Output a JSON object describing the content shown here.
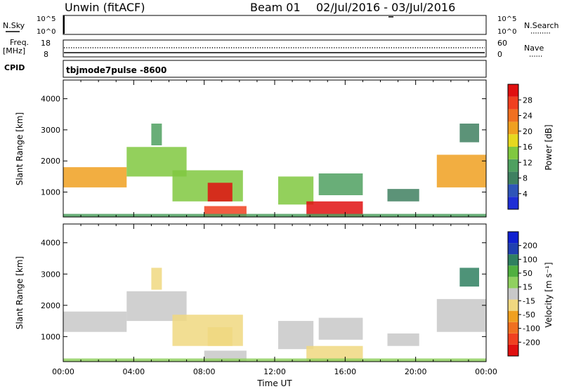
{
  "header": {
    "station": "Unwin (fitACF)",
    "beam": "Beam 01",
    "date_range": "02/Jul/2016 - 03/Jul/2016"
  },
  "top_panels": {
    "nsky": {
      "label": "N.Sky",
      "ticks": [
        "10^5",
        "10^0"
      ],
      "right_ticks": [
        "10^5",
        "10^0"
      ],
      "right_label": "N.Search"
    },
    "freq": {
      "label_line1": "Freq.",
      "label_line2": "[MHz]",
      "ticks": [
        "18",
        "8"
      ],
      "right_ticks": [
        "60",
        "0"
      ],
      "right_label": "Nave"
    },
    "cpid": {
      "label": "CPID",
      "mode_text": "tbjmode7pulse -8600"
    }
  },
  "colors": {
    "power_scale": [
      "#1f2fd6",
      "#2f55b8",
      "#3f8060",
      "#4fa060",
      "#80c840",
      "#e6d820",
      "#f0a020",
      "#f07020",
      "#f04020",
      "#e01010"
    ],
    "velocity_scale": [
      "#e01010",
      "#f04020",
      "#f07020",
      "#f0a020",
      "#f0d880",
      "#c8c8c8",
      "#90d060",
      "#50b040",
      "#2f8060",
      "#2040b0",
      "#1020d0"
    ]
  },
  "chart_data": [
    {
      "type": "heatmap",
      "name": "power-panel",
      "ylabel": "Slant Range [km]",
      "yticks": [
        1000,
        2000,
        3000,
        4000
      ],
      "ylim": [
        200,
        4600
      ],
      "xlim": [
        0,
        24
      ],
      "colorbar": {
        "label": "Power [dB]",
        "ticks": [
          "4",
          "8",
          "12",
          "16",
          "20",
          "24",
          "28"
        ],
        "range": [
          0,
          30
        ]
      },
      "regions": [
        {
          "t0": 0.0,
          "t1": 3.6,
          "r0": 1150,
          "r1": 1800,
          "level": 18
        },
        {
          "t0": 3.6,
          "t1": 7.0,
          "r0": 1500,
          "r1": 2450,
          "level": 14
        },
        {
          "t0": 5.0,
          "t1": 5.6,
          "r0": 2500,
          "r1": 3200,
          "level": 9
        },
        {
          "t0": 6.2,
          "t1": 10.2,
          "r0": 700,
          "r1": 1700,
          "level": 14
        },
        {
          "t0": 8.2,
          "t1": 9.6,
          "r0": 700,
          "r1": 1300,
          "level": 28
        },
        {
          "t0": 8.0,
          "t1": 10.4,
          "r0": 200,
          "r1": 550,
          "level": 24
        },
        {
          "t0": 12.2,
          "t1": 14.2,
          "r0": 600,
          "r1": 1500,
          "level": 12
        },
        {
          "t0": 13.8,
          "t1": 17.0,
          "r0": 200,
          "r1": 700,
          "level": 28
        },
        {
          "t0": 14.5,
          "t1": 17.0,
          "r0": 900,
          "r1": 1600,
          "level": 10
        },
        {
          "t0": 18.4,
          "t1": 20.2,
          "r0": 700,
          "r1": 1100,
          "level": 8
        },
        {
          "t0": 21.2,
          "t1": 24.0,
          "r0": 1150,
          "r1": 2200,
          "level": 18
        },
        {
          "t0": 22.5,
          "t1": 23.6,
          "r0": 2600,
          "r1": 3200,
          "level": 8
        },
        {
          "t0": 0.0,
          "t1": 24.0,
          "r0": 200,
          "r1": 300,
          "level": 10
        }
      ]
    },
    {
      "type": "heatmap",
      "name": "velocity-panel",
      "ylabel": "Slant Range [km]",
      "xlabel": "Time UT",
      "yticks": [
        1000,
        2000,
        3000,
        4000
      ],
      "xticks": [
        "00:00",
        "04:00",
        "08:00",
        "12:00",
        "16:00",
        "20:00",
        "00:00"
      ],
      "ylim": [
        200,
        4600
      ],
      "xlim": [
        0,
        24
      ],
      "colorbar": {
        "label": "Velocity [m s⁻¹]",
        "ticks": [
          "200",
          "100",
          "50",
          "15",
          "-15",
          "-50",
          "-100",
          "-200"
        ],
        "range": [
          -250,
          250
        ]
      },
      "regions": [
        {
          "t0": 0.0,
          "t1": 3.6,
          "r0": 1150,
          "r1": 1800,
          "level": 0
        },
        {
          "t0": 3.6,
          "t1": 7.0,
          "r0": 1500,
          "r1": 2450,
          "level": 0
        },
        {
          "t0": 5.0,
          "t1": 5.6,
          "r0": 2500,
          "r1": 3200,
          "level": -30
        },
        {
          "t0": 6.2,
          "t1": 10.2,
          "r0": 700,
          "r1": 1700,
          "level": -40
        },
        {
          "t0": 8.2,
          "t1": 9.6,
          "r0": 700,
          "r1": 1300,
          "level": -30
        },
        {
          "t0": 8.0,
          "t1": 10.4,
          "r0": 200,
          "r1": 550,
          "level": -20
        },
        {
          "t0": 12.2,
          "t1": 14.2,
          "r0": 600,
          "r1": 1500,
          "level": 0
        },
        {
          "t0": 13.8,
          "t1": 17.0,
          "r0": 200,
          "r1": 700,
          "level": -60
        },
        {
          "t0": 14.5,
          "t1": 17.0,
          "r0": 900,
          "r1": 1600,
          "level": 0
        },
        {
          "t0": 18.4,
          "t1": 20.2,
          "r0": 700,
          "r1": 1100,
          "level": -10
        },
        {
          "t0": 21.2,
          "t1": 24.0,
          "r0": 1150,
          "r1": 2200,
          "level": 20
        },
        {
          "t0": 22.5,
          "t1": 23.6,
          "r0": 2600,
          "r1": 3200,
          "level": 120
        },
        {
          "t0": 0.0,
          "t1": 24.0,
          "r0": 200,
          "r1": 300,
          "level": 30
        }
      ]
    }
  ]
}
